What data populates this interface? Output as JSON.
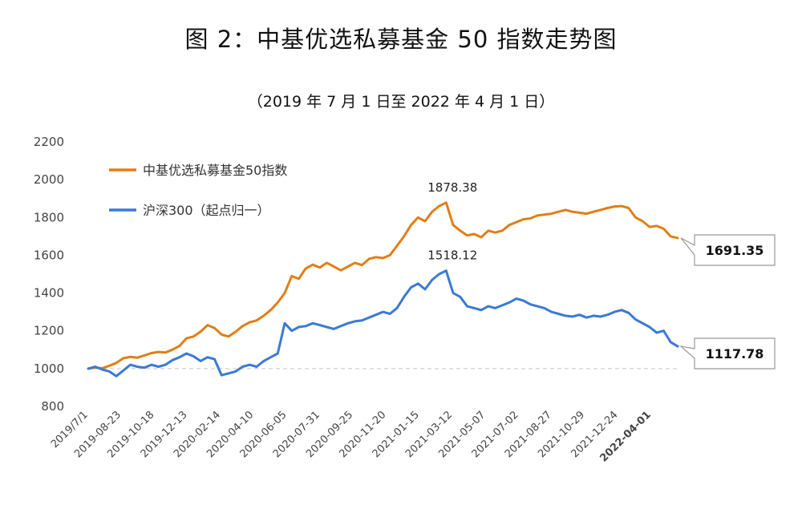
{
  "chart_data": {
    "type": "line",
    "title": "图 2：中基优选私募基金 50 指数走势图",
    "subtitle": "（2019 年 7 月 1 日至 2022 年 4 月 1 日）",
    "ylim": [
      800,
      2200
    ],
    "yticks": [
      800,
      1000,
      1200,
      1400,
      1600,
      1800,
      2000,
      2200
    ],
    "x_tick_labels": [
      "2019/7/1",
      "2019-08-23",
      "2019-10-18",
      "2019-12-13",
      "2020-02-14",
      "2020-04-10",
      "2020-06-05",
      "2020-07-31",
      "2020-09-25",
      "2020-11-20",
      "2021-01-15",
      "2021-03-12",
      "2021-05-07",
      "2021-07-02",
      "2021-08-27",
      "2021-10-29",
      "2021-12-24",
      "2022-04-01"
    ],
    "baseline": 1000,
    "series": [
      {
        "name": "中基优选私募基金50指数",
        "color": "#E07F17",
        "values": [
          1000,
          1005,
          1002,
          1015,
          1030,
          1055,
          1062,
          1058,
          1070,
          1082,
          1088,
          1085,
          1100,
          1120,
          1160,
          1170,
          1195,
          1230,
          1215,
          1180,
          1170,
          1195,
          1225,
          1245,
          1255,
          1280,
          1310,
          1350,
          1400,
          1490,
          1475,
          1530,
          1550,
          1535,
          1560,
          1540,
          1520,
          1540,
          1560,
          1548,
          1580,
          1590,
          1585,
          1600,
          1650,
          1700,
          1760,
          1800,
          1780,
          1830,
          1860,
          1878.38,
          1760,
          1730,
          1705,
          1712,
          1695,
          1730,
          1720,
          1730,
          1760,
          1775,
          1790,
          1795,
          1810,
          1815,
          1820,
          1830,
          1840,
          1830,
          1825,
          1820,
          1830,
          1840,
          1850,
          1858,
          1860,
          1850,
          1800,
          1780,
          1750,
          1755,
          1740,
          1700,
          1691.35
        ]
      },
      {
        "name": "沪深300（起点归一）",
        "color": "#3C79D4",
        "values": [
          1000,
          1010,
          995,
          985,
          960,
          990,
          1020,
          1010,
          1005,
          1020,
          1010,
          1020,
          1045,
          1060,
          1080,
          1065,
          1040,
          1060,
          1050,
          965,
          975,
          985,
          1010,
          1020,
          1010,
          1040,
          1060,
          1080,
          1240,
          1200,
          1220,
          1225,
          1240,
          1230,
          1220,
          1210,
          1225,
          1240,
          1250,
          1255,
          1270,
          1285,
          1300,
          1290,
          1320,
          1380,
          1430,
          1450,
          1420,
          1470,
          1500,
          1518.12,
          1400,
          1380,
          1330,
          1320,
          1310,
          1330,
          1320,
          1335,
          1350,
          1370,
          1360,
          1340,
          1330,
          1320,
          1300,
          1290,
          1280,
          1275,
          1285,
          1270,
          1280,
          1275,
          1285,
          1300,
          1310,
          1295,
          1260,
          1240,
          1220,
          1190,
          1200,
          1140,
          1117.78
        ]
      }
    ],
    "legend": "top-left",
    "annotations": [
      {
        "text": "1878.38",
        "series": 0,
        "index": 51
      },
      {
        "text": "1518.12",
        "series": 1,
        "index": 51
      }
    ],
    "end_labels": [
      {
        "text": "1691.35",
        "series": 0
      },
      {
        "text": "1117.78",
        "series": 1
      }
    ],
    "grid": false
  }
}
